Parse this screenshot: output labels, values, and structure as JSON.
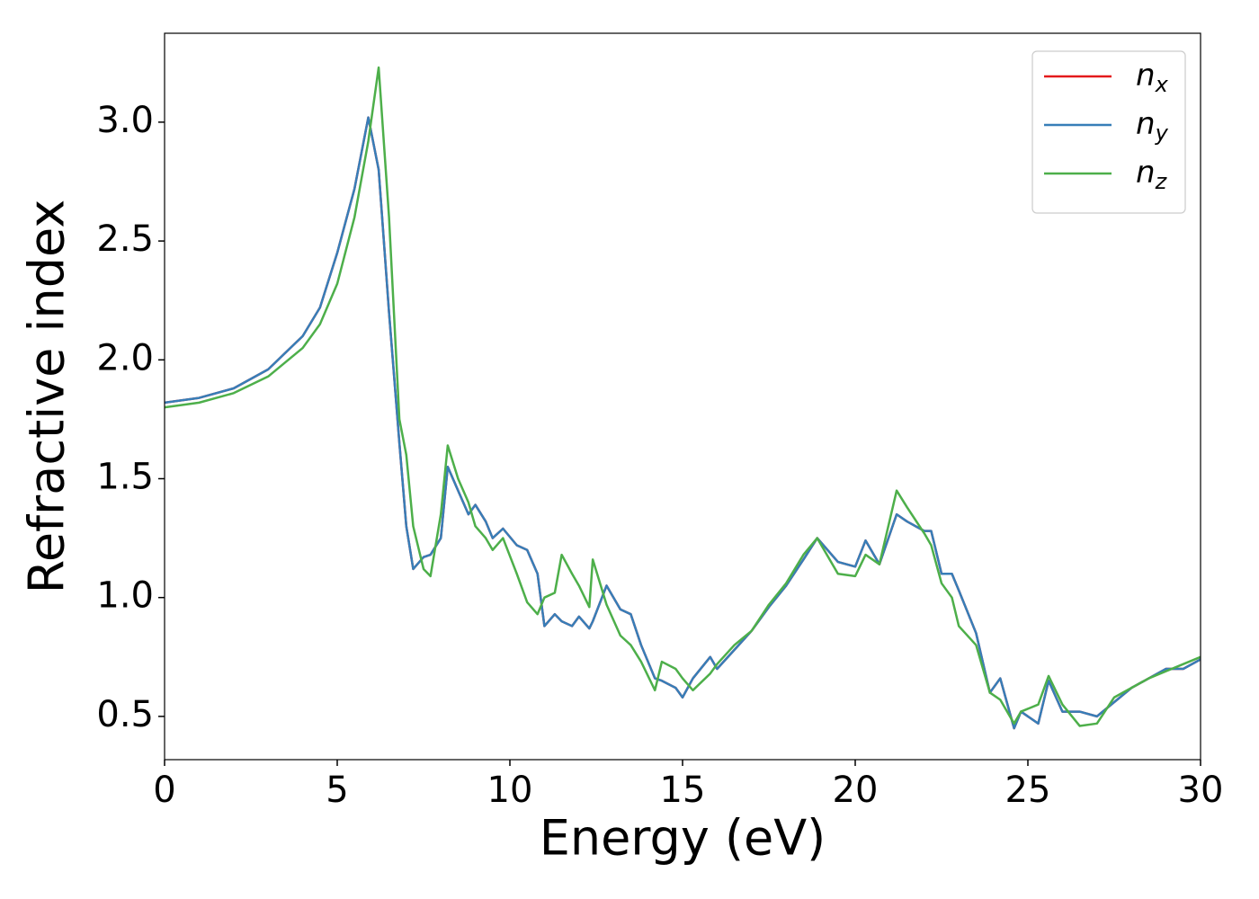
{
  "chart_data": {
    "type": "line",
    "xlabel": "Energy (eV)",
    "ylabel": "Refractive index",
    "x": [
      0,
      1,
      2,
      3,
      4,
      4.5,
      5,
      5.5,
      5.9,
      6.2,
      6.5,
      6.8,
      7.0,
      7.2,
      7.5,
      7.7,
      8.0,
      8.2,
      8.5,
      8.8,
      9.0,
      9.3,
      9.5,
      9.8,
      10.2,
      10.5,
      10.8,
      11.0,
      11.3,
      11.5,
      11.8,
      12.0,
      12.3,
      12.4,
      12.8,
      13.2,
      13.5,
      13.8,
      14.2,
      14.4,
      14.8,
      15.0,
      15.3,
      15.8,
      16.0,
      16.5,
      17.0,
      17.5,
      18.0,
      18.5,
      18.9,
      19.5,
      20.0,
      20.3,
      20.7,
      21.2,
      21.5,
      22.0,
      22.2,
      22.5,
      22.8,
      23.0,
      23.5,
      23.9,
      24.2,
      24.6,
      24.8,
      25.3,
      25.6,
      26.0,
      26.5,
      27.0,
      27.5,
      28.0,
      28.5,
      29.0,
      29.5,
      30
    ],
    "series": [
      {
        "name": "nx",
        "color": "#e41a1c",
        "values": [
          1.82,
          1.84,
          1.88,
          1.96,
          2.1,
          2.22,
          2.45,
          2.72,
          3.02,
          2.8,
          2.2,
          1.65,
          1.3,
          1.12,
          1.17,
          1.18,
          1.25,
          1.55,
          1.45,
          1.35,
          1.39,
          1.32,
          1.25,
          1.29,
          1.22,
          1.2,
          1.1,
          0.88,
          0.93,
          0.9,
          0.88,
          0.92,
          0.87,
          0.9,
          1.05,
          0.95,
          0.93,
          0.8,
          0.66,
          0.65,
          0.62,
          0.58,
          0.66,
          0.75,
          0.7,
          0.78,
          0.86,
          0.96,
          1.05,
          1.16,
          1.25,
          1.15,
          1.13,
          1.24,
          1.14,
          1.35,
          1.32,
          1.28,
          1.28,
          1.1,
          1.1,
          1.03,
          0.85,
          0.6,
          0.66,
          0.45,
          0.52,
          0.47,
          0.65,
          0.52,
          0.52,
          0.5,
          0.56,
          0.62,
          0.66,
          0.7,
          0.7,
          0.74
        ]
      },
      {
        "name": "ny",
        "color": "#377eb8",
        "values": [
          1.82,
          1.84,
          1.88,
          1.96,
          2.1,
          2.22,
          2.45,
          2.72,
          3.02,
          2.8,
          2.2,
          1.65,
          1.3,
          1.12,
          1.17,
          1.18,
          1.25,
          1.55,
          1.45,
          1.35,
          1.39,
          1.32,
          1.25,
          1.29,
          1.22,
          1.2,
          1.1,
          0.88,
          0.93,
          0.9,
          0.88,
          0.92,
          0.87,
          0.9,
          1.05,
          0.95,
          0.93,
          0.8,
          0.66,
          0.65,
          0.62,
          0.58,
          0.66,
          0.75,
          0.7,
          0.78,
          0.86,
          0.96,
          1.05,
          1.16,
          1.25,
          1.15,
          1.13,
          1.24,
          1.14,
          1.35,
          1.32,
          1.28,
          1.28,
          1.1,
          1.1,
          1.03,
          0.85,
          0.6,
          0.66,
          0.45,
          0.52,
          0.47,
          0.65,
          0.52,
          0.52,
          0.5,
          0.56,
          0.62,
          0.66,
          0.7,
          0.7,
          0.74
        ]
      },
      {
        "name": "nz",
        "color": "#4daf4a",
        "values": [
          1.8,
          1.82,
          1.86,
          1.93,
          2.05,
          2.15,
          2.32,
          2.6,
          2.92,
          3.23,
          2.6,
          1.75,
          1.6,
          1.3,
          1.12,
          1.09,
          1.35,
          1.64,
          1.5,
          1.4,
          1.3,
          1.25,
          1.2,
          1.25,
          1.1,
          0.98,
          0.93,
          1.0,
          1.02,
          1.18,
          1.1,
          1.05,
          0.96,
          1.16,
          0.97,
          0.84,
          0.8,
          0.73,
          0.61,
          0.73,
          0.7,
          0.66,
          0.61,
          0.68,
          0.72,
          0.8,
          0.86,
          0.97,
          1.06,
          1.18,
          1.25,
          1.1,
          1.09,
          1.18,
          1.14,
          1.45,
          1.38,
          1.27,
          1.22,
          1.06,
          1.0,
          0.88,
          0.8,
          0.6,
          0.57,
          0.47,
          0.52,
          0.55,
          0.67,
          0.55,
          0.46,
          0.47,
          0.58,
          0.62,
          0.66,
          0.69,
          0.72,
          0.75
        ]
      }
    ],
    "xlim": [
      0,
      30
    ],
    "xticks": [
      0,
      5,
      10,
      15,
      20,
      25,
      30
    ],
    "ylim": [
      0.318,
      3.374
    ],
    "yticks": [
      0.5,
      {
        "value": 1,
        "label": "1.0"
      },
      1.5,
      {
        "value": 2,
        "label": "2.0"
      },
      2.5,
      {
        "value": 3,
        "label": "3.0"
      }
    ],
    "grid": false,
    "legend": "upper right"
  }
}
